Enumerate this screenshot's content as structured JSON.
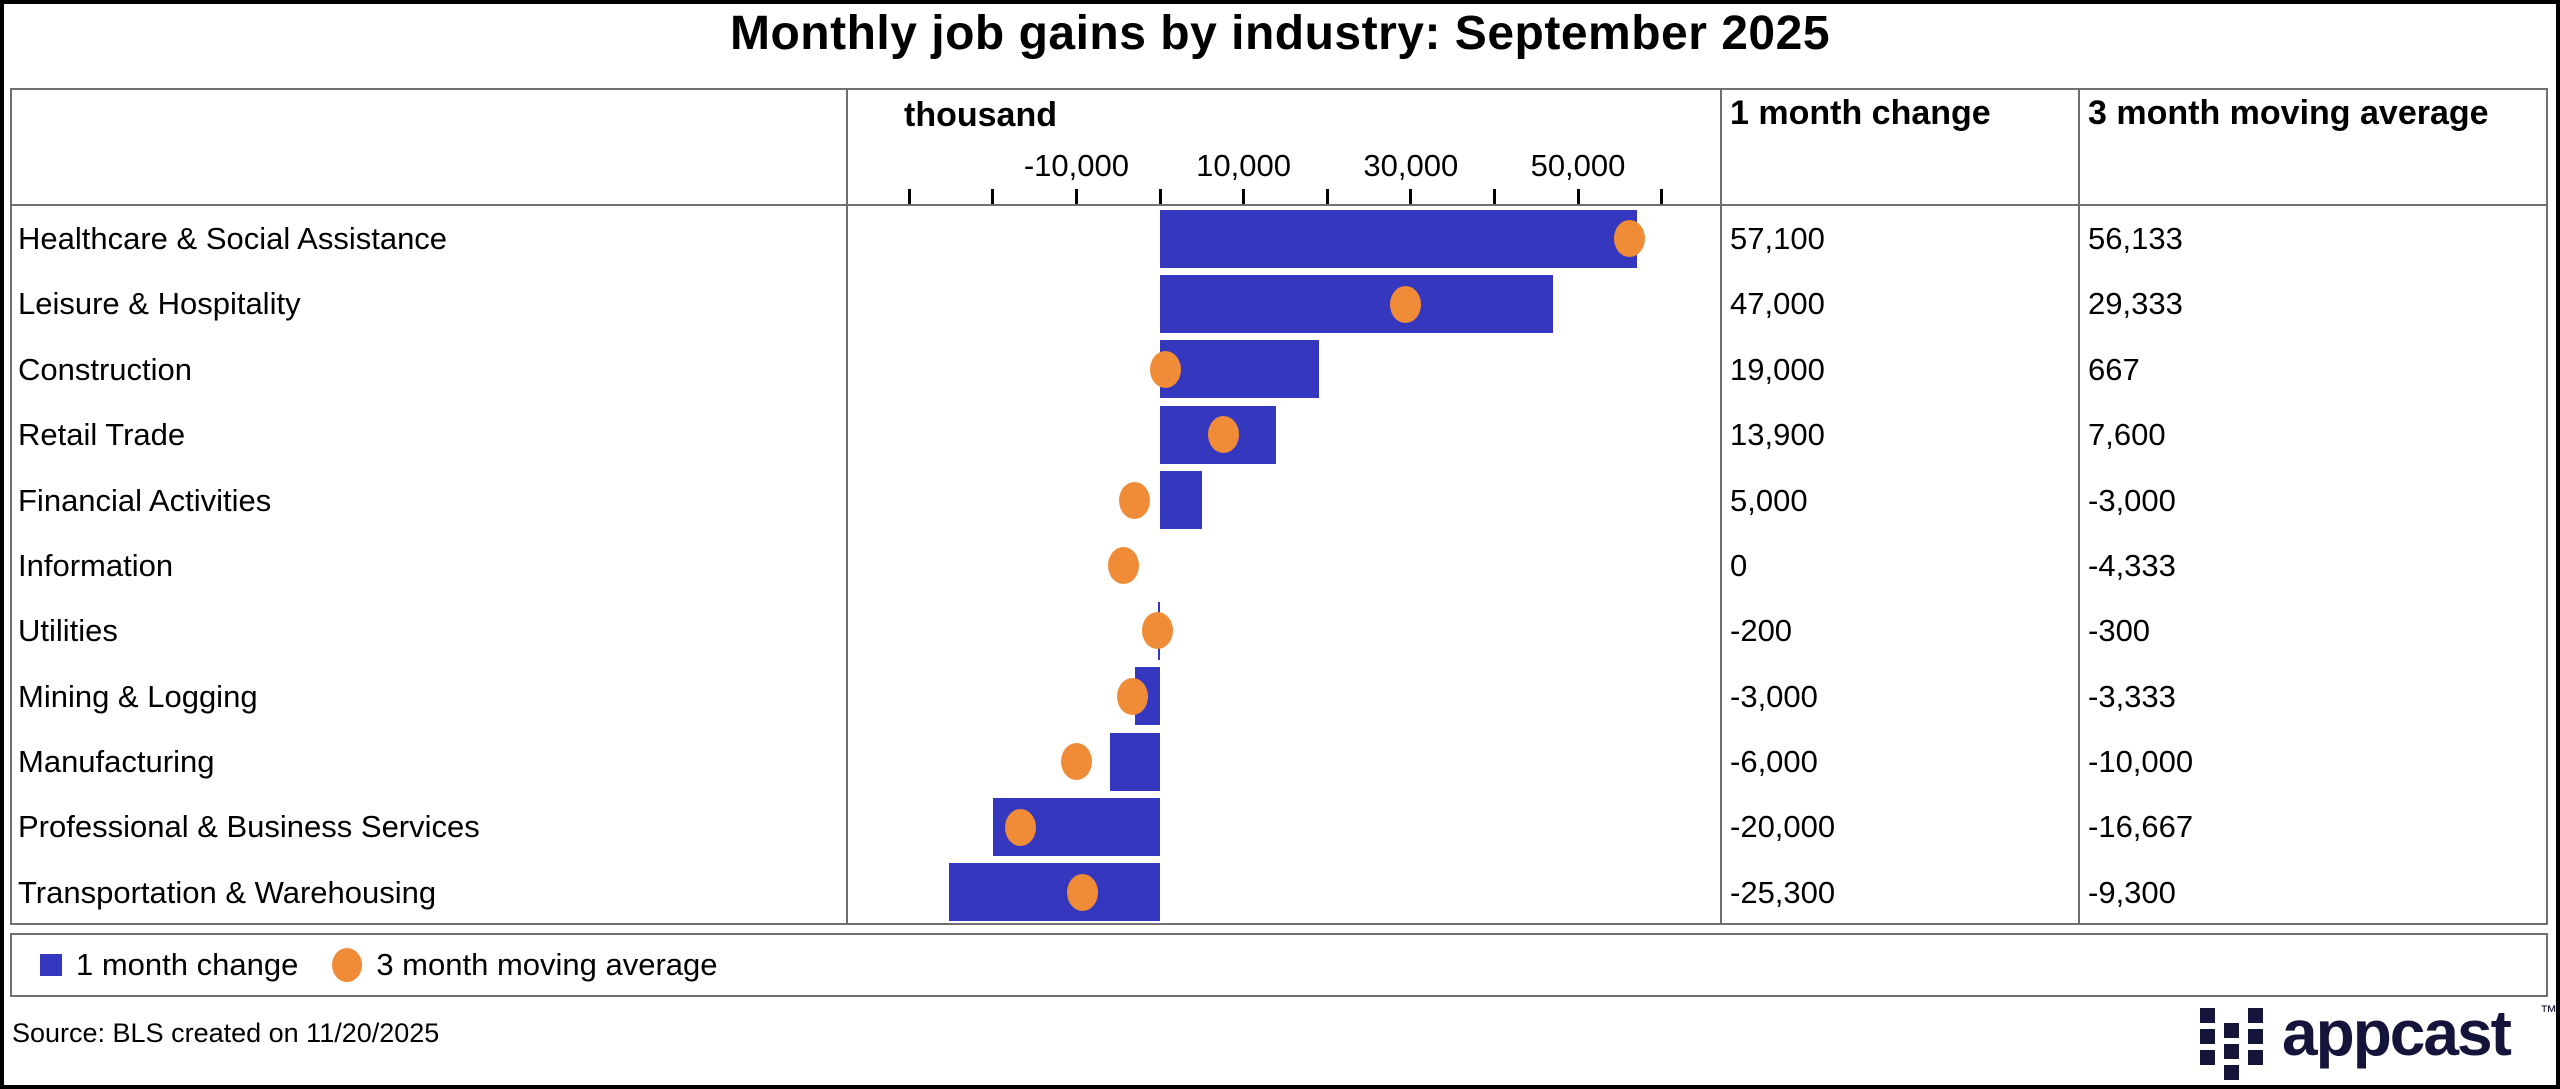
{
  "page": {
    "title": "Monthly job gains by industry: September 2025"
  },
  "table": {
    "unit_header": "thousand",
    "col_change_header": "1 month change",
    "col_avg_header": "3 month moving average"
  },
  "chart_data": {
    "type": "bar",
    "orientation": "horizontal",
    "title": "Monthly job gains by industry: September 2025",
    "xlabel": "thousand",
    "xlim": [
      -37300,
      67200
    ],
    "grid": false,
    "legend_position": "bottom",
    "ticks": [
      -30000,
      -20000,
      -10000,
      0,
      10000,
      20000,
      30000,
      40000,
      50000,
      60000
    ],
    "tick_labels": {
      "-10000": "-10,000",
      "10000": "10,000",
      "30000": "30,000",
      "50000": "50,000"
    },
    "categories": [
      "Healthcare & Social Assistance",
      "Leisure & Hospitality",
      "Construction",
      "Retail Trade",
      "Financial Activities",
      "Information",
      "Utilities",
      "Mining & Logging",
      "Manufacturing",
      "Professional & Business Services",
      "Transportation & Warehousing"
    ],
    "series": [
      {
        "name": "1 month change",
        "mark": "bar",
        "color": "#3637BF",
        "values": [
          57100,
          47000,
          19000,
          13900,
          5000,
          0,
          -200,
          -3000,
          -6000,
          -20000,
          -25300
        ]
      },
      {
        "name": "3 month moving average",
        "mark": "point",
        "color": "#F08C38",
        "values": [
          56133,
          29333,
          667,
          7600,
          -3000,
          -4333,
          -300,
          -3333,
          -10000,
          -16667,
          -9300
        ]
      }
    ],
    "display_values": {
      "one_month_change": [
        "57,100",
        "47,000",
        "19,000",
        "13,900",
        "5,000",
        "0",
        "-200",
        "-3,000",
        "-6,000",
        "-20,000",
        "-25,300"
      ],
      "three_month_avg": [
        "56,133",
        "29,333",
        "667",
        "7,600",
        "-3,000",
        "-4,333",
        "-300",
        "-3,333",
        "-10,000",
        "-16,667",
        "-9,300"
      ]
    }
  },
  "legend": {
    "items": [
      {
        "label": "1 month change",
        "swatch": "square",
        "color": "#3637BF"
      },
      {
        "label": "3 month moving average",
        "swatch": "circle",
        "color": "#F08C38"
      }
    ]
  },
  "footer": {
    "source": "Source: BLS created on 11/20/2025"
  },
  "brand": {
    "wordmark": "appcast",
    "tm": "™"
  },
  "colors": {
    "bar": "#3637BF",
    "dot": "#F08C38",
    "logo_navy": "#15153B",
    "table_border": "#6f6f6f",
    "text": "#000000",
    "background": "#FFFFFF"
  }
}
